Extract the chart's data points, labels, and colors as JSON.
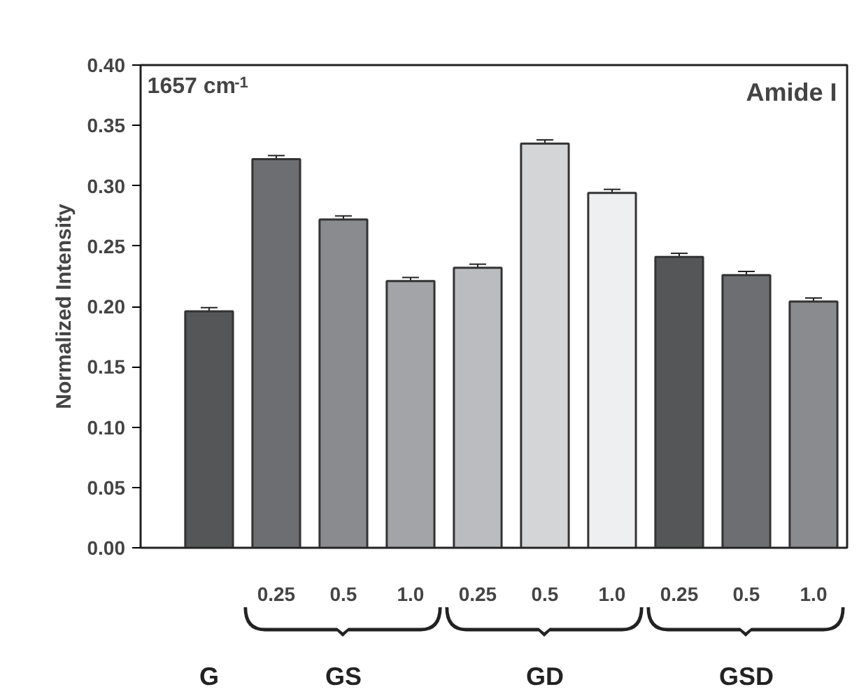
{
  "chart_data": {
    "type": "bar",
    "ylabel": "Normalized Intensity",
    "categories": [
      null,
      "0.25",
      "0.5",
      "1.0",
      "0.25",
      "0.5",
      "1.0",
      "0.25",
      "0.5",
      "1.0"
    ],
    "values": [
      0.196,
      0.322,
      0.272,
      0.221,
      0.232,
      0.335,
      0.294,
      0.241,
      0.226,
      0.204
    ],
    "errors": [
      0.003,
      0.003,
      0.003,
      0.003,
      0.003,
      0.003,
      0.003,
      0.003,
      0.003,
      0.003
    ],
    "colors": [
      "#555657",
      "#6d6e71",
      "#8a8b8e",
      "#a3a4a7",
      "#bbbcbf",
      "#d4d5d6",
      "#eeeff0",
      "#555657",
      "#6d6e71",
      "#8a8b8e"
    ],
    "ylim": [
      0,
      0.4
    ],
    "yticks": [
      {
        "value": 0,
        "label": "0.00"
      },
      {
        "value": 0.05,
        "label": "0.05"
      },
      {
        "value": 0.1,
        "label": "0.10"
      },
      {
        "value": 0.15,
        "label": "0.15"
      },
      {
        "value": 0.2,
        "label": "0.20"
      },
      {
        "value": 0.25,
        "label": "0.25"
      },
      {
        "value": 0.3,
        "label": "0.30"
      },
      {
        "value": 0.35,
        "label": "0.35"
      },
      {
        "value": 0.4,
        "label": "0.40"
      }
    ],
    "annotations": [
      "1657 cm$^{-1}$",
      "Amide I",
      "G",
      "GS",
      "GD",
      "GSD"
    ],
    "grid": false
  }
}
